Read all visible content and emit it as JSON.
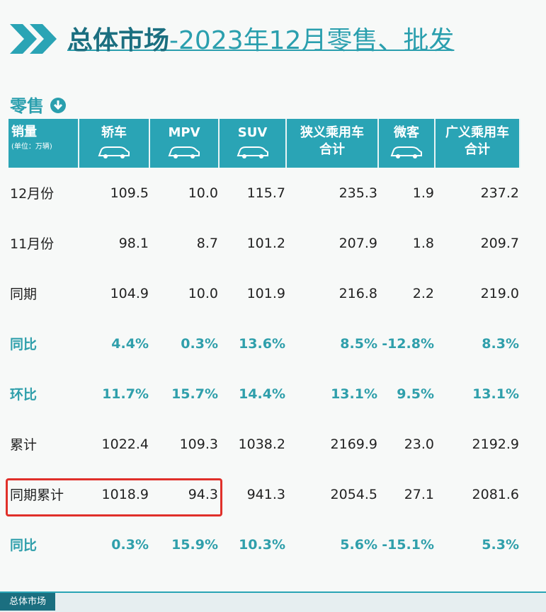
{
  "header": {
    "title_main": "总体市场",
    "title_rest": "-2023年12月零售、批发"
  },
  "section": "零售",
  "table": {
    "corner": "销量",
    "unit": "(单位：万辆)",
    "columns": [
      [
        "轿车"
      ],
      [
        "MPV"
      ],
      [
        "SUV"
      ],
      [
        "狭义乘用车",
        "合计"
      ],
      [
        "微客"
      ],
      [
        "广义乘用车",
        "合计"
      ]
    ],
    "rows": [
      [
        "12月份",
        "109.5",
        "10.0",
        "115.7",
        "235.3",
        "1.9",
        "237.2"
      ],
      [
        "11月份",
        "98.1",
        "8.7",
        "101.2",
        "207.9",
        "1.8",
        "209.7"
      ],
      [
        "同期",
        "104.9",
        "10.0",
        "101.9",
        "216.8",
        "2.2",
        "219.0"
      ],
      [
        "同比",
        "4.4%",
        "0.3%",
        "13.6%",
        "8.5%",
        "-12.8%",
        "8.3%"
      ],
      [
        "环比",
        "11.7%",
        "15.7%",
        "14.4%",
        "13.1%",
        "9.5%",
        "13.1%"
      ],
      [
        "累计",
        "1022.4",
        "109.3",
        "1038.2",
        "2169.9",
        "23.0",
        "2192.9"
      ],
      [
        "同期累计",
        "1018.9",
        "94.3",
        "941.3",
        "2054.5",
        "27.1",
        "2081.6"
      ],
      [
        "同比",
        "0.3%",
        "15.9%",
        "10.3%",
        "5.6%",
        "-15.1%",
        "5.3%"
      ]
    ]
  },
  "tabs": [
    "总体市场"
  ]
}
